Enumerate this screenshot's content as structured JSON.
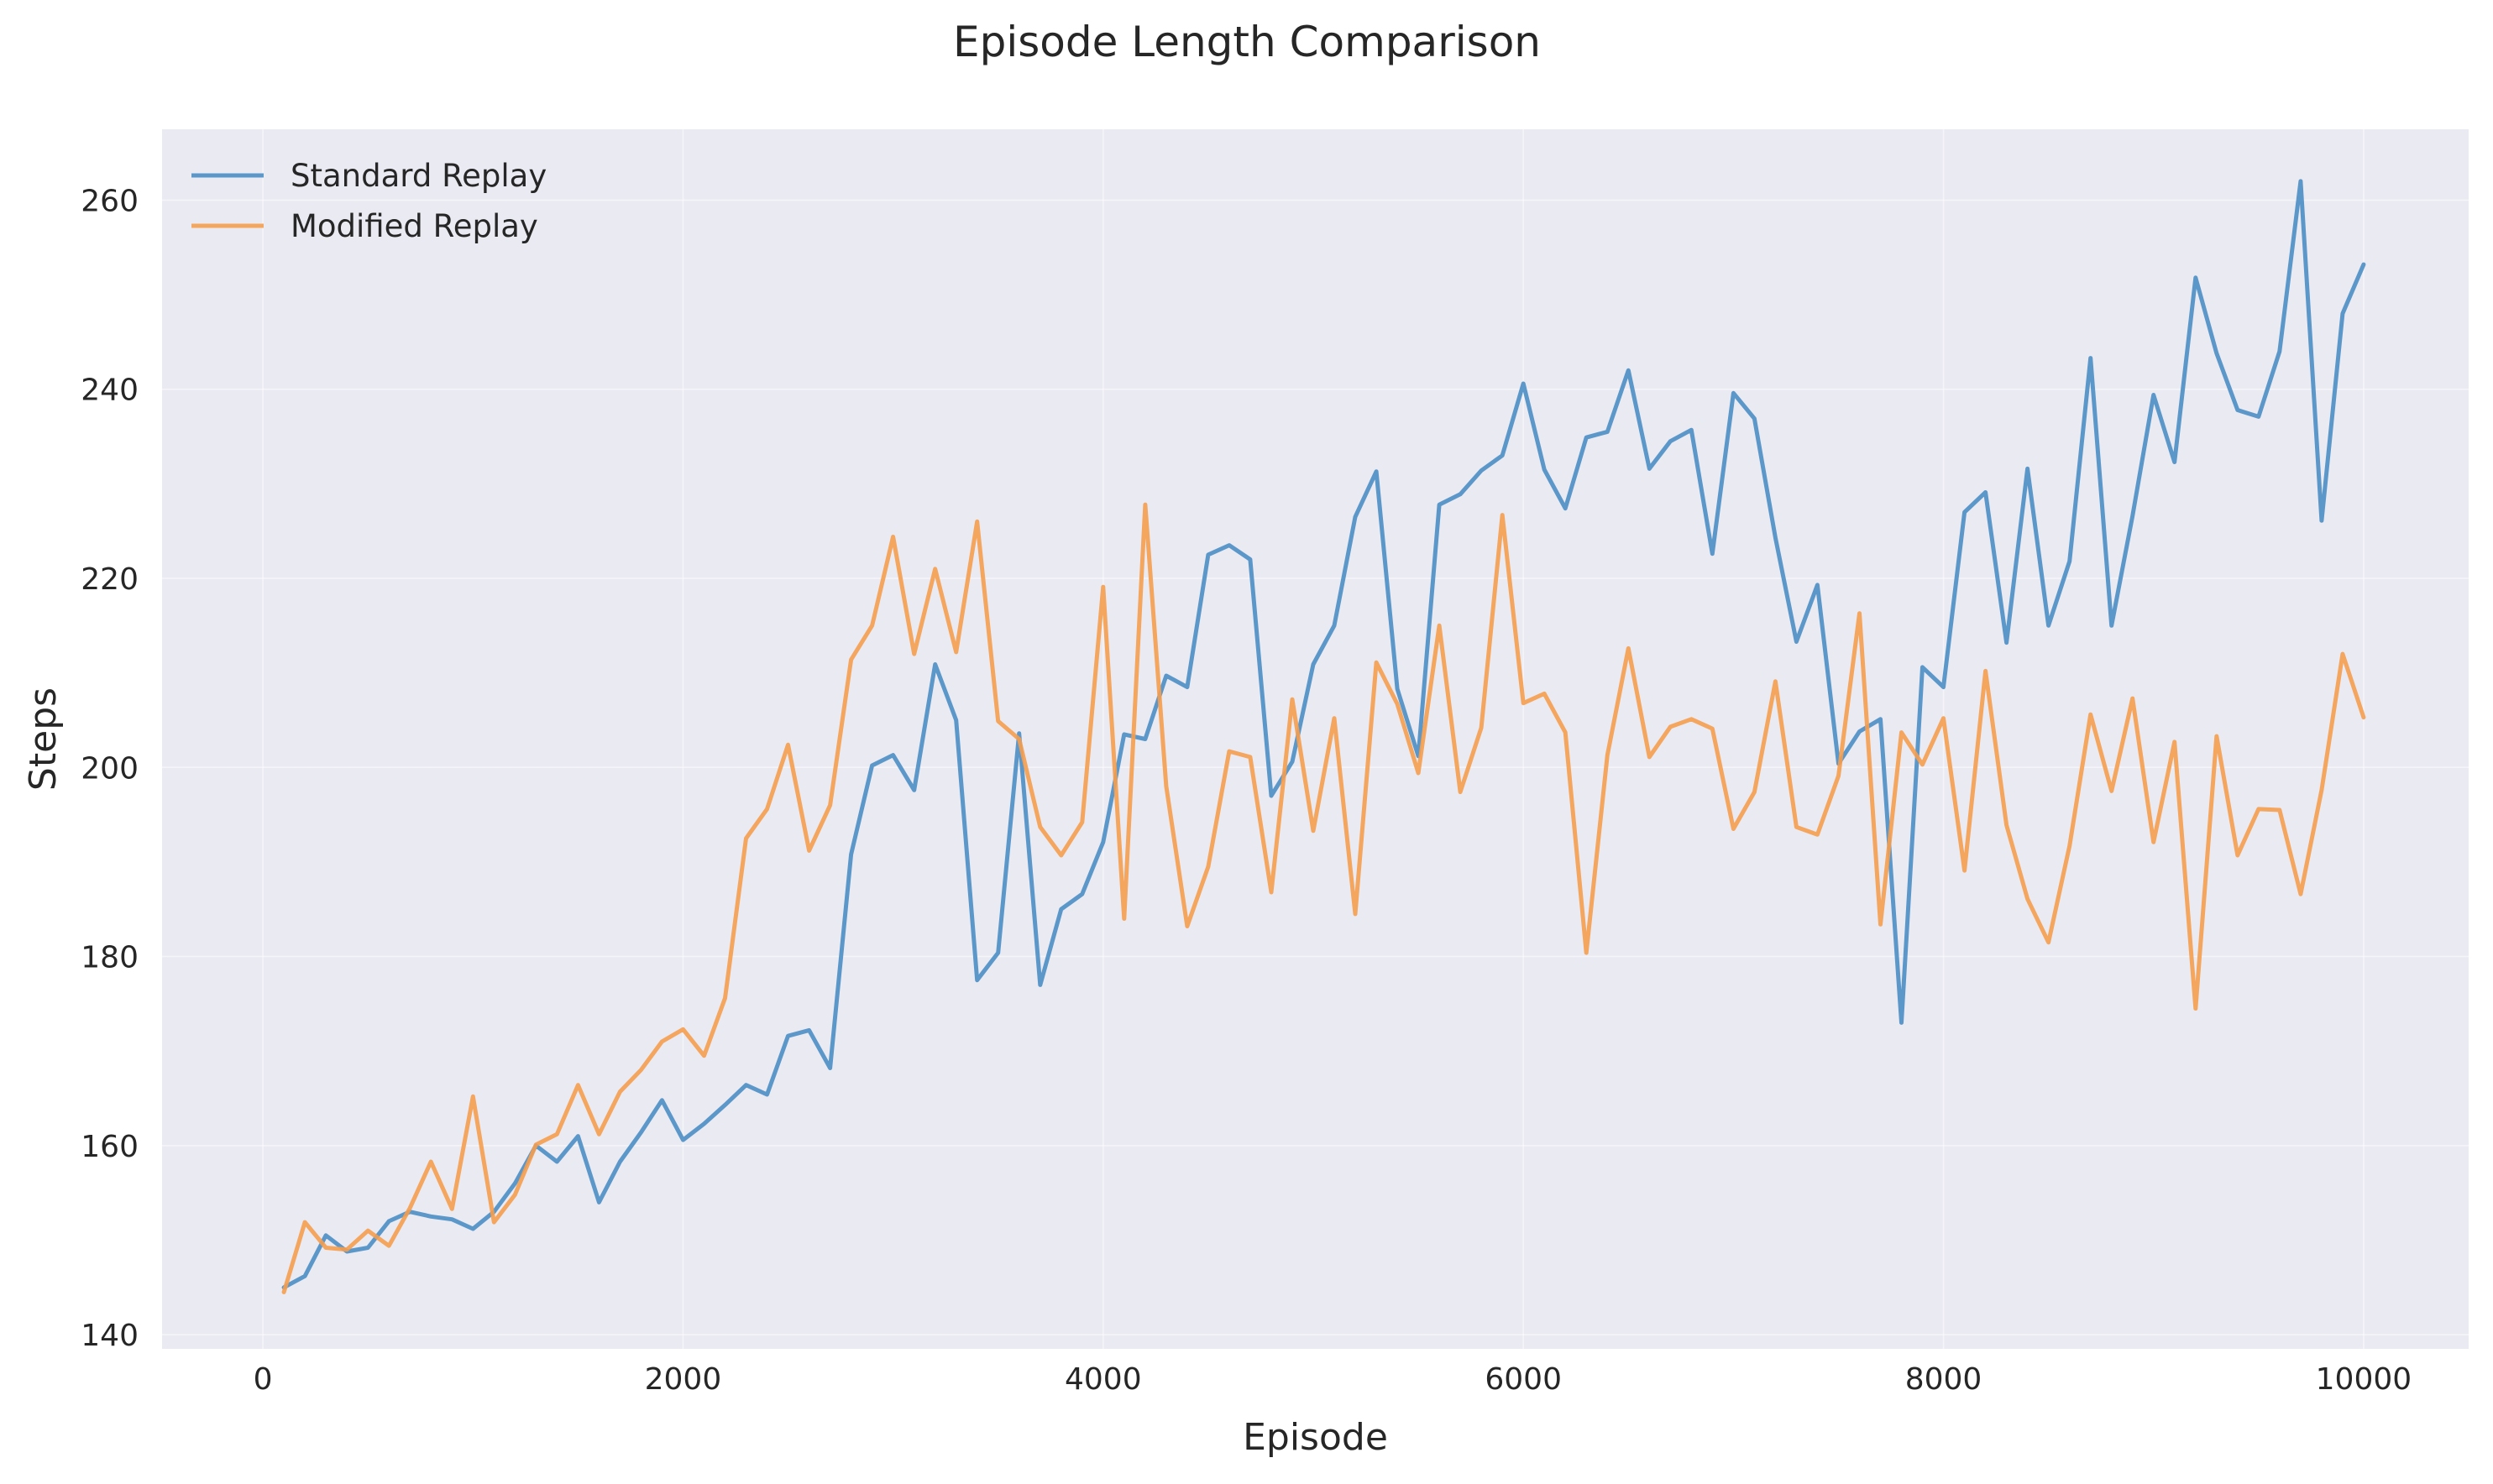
{
  "chart_data": {
    "type": "line",
    "title": "Episode Length Comparison",
    "xlabel": "Episode",
    "ylabel": "Steps",
    "xlim": [
      -480,
      10500
    ],
    "ylim": [
      138.5,
      267.5
    ],
    "xticks": [
      0,
      2000,
      4000,
      6000,
      8000,
      10000
    ],
    "xtick_labels": [
      "0",
      "2000",
      "4000",
      "6000",
      "8000",
      "10000"
    ],
    "yticks": [
      140,
      160,
      180,
      200,
      220,
      240,
      260
    ],
    "ytick_labels": [
      "140",
      "160",
      "180",
      "200",
      "220",
      "240",
      "260"
    ],
    "grid": true,
    "legend_position": "top-left",
    "x": [
      100,
      200,
      300,
      400,
      500,
      600,
      700,
      800,
      900,
      1000,
      1100,
      1200,
      1300,
      1400,
      1500,
      1600,
      1700,
      1800,
      1900,
      2000,
      2100,
      2200,
      2300,
      2400,
      2500,
      2600,
      2700,
      2800,
      2900,
      3000,
      3100,
      3200,
      3300,
      3400,
      3500,
      3600,
      3700,
      3800,
      3900,
      4000,
      4100,
      4200,
      4300,
      4400,
      4500,
      4600,
      4700,
      4800,
      4900,
      5000,
      5100,
      5200,
      5300,
      5400,
      5500,
      5600,
      5700,
      5800,
      5900,
      6000,
      6100,
      6200,
      6300,
      6400,
      6500,
      6600,
      6700,
      6800,
      6900,
      7000,
      7100,
      7200,
      7300,
      7400,
      7500,
      7600,
      7700,
      7800,
      7900,
      8000,
      8100,
      8200,
      8300,
      8400,
      8500,
      8600,
      8700,
      8800,
      8900,
      9000,
      9100,
      9200,
      9300,
      9400,
      9500,
      9600,
      9700,
      9800,
      9900,
      10000
    ],
    "series": [
      {
        "name": "Standard Replay",
        "color": "#4c8ec4",
        "values": [
          145,
          146.2,
          150.5,
          148.8,
          149.2,
          152,
          153,
          152.5,
          152.2,
          151.2,
          153,
          156,
          160,
          158.3,
          161,
          154,
          158.3,
          161.4,
          164.8,
          160.6,
          162.3,
          164.3,
          166.4,
          165.4,
          171.6,
          172.2,
          168.2,
          190.8,
          200.2,
          201.3,
          197.6,
          210.9,
          205,
          177.5,
          180.4,
          203.6,
          177,
          185,
          186.6,
          192.1,
          203.5,
          203,
          209.7,
          208.5,
          222.5,
          223.5,
          222,
          197,
          200.6,
          210.9,
          215,
          226.5,
          231.3,
          208.3,
          201.2,
          227.8,
          228.9,
          231.4,
          233,
          240.6,
          231.5,
          227.4,
          234.9,
          235.5,
          242,
          231.6,
          234.5,
          235.7,
          222.6,
          239.6,
          236.9,
          224.3,
          213.3,
          219.3,
          200.4,
          203.8,
          205.1,
          173,
          210.6,
          208.5,
          227,
          229.1,
          213.2,
          231.6,
          215,
          221.8,
          243.3,
          215,
          226.6,
          239.4,
          232.3,
          251.8,
          243.8,
          237.8,
          237.1,
          244,
          262,
          226.1,
          248,
          253.2
        ]
      },
      {
        "name": "Modified Replay",
        "color": "#f59d4e",
        "values": [
          144.5,
          151.9,
          149.2,
          149,
          151,
          149.4,
          153.4,
          158.3,
          153.3,
          165.2,
          151.9,
          154.8,
          160.1,
          161.2,
          166.4,
          161.2,
          165.7,
          168,
          171,
          172.3,
          169.5,
          175.6,
          192.5,
          195.6,
          202.4,
          191.2,
          196,
          211.4,
          215,
          224.4,
          212,
          221,
          212.2,
          226,
          204.9,
          203,
          193.7,
          190.7,
          194.2,
          219.1,
          184,
          227.8,
          198,
          183.2,
          189.5,
          201.7,
          201.1,
          186.8,
          207.2,
          193.3,
          205.2,
          184.5,
          211.1,
          206.7,
          199.4,
          215,
          197.4,
          204.2,
          226.7,
          206.8,
          207.8,
          203.7,
          180.4,
          201.3,
          212.6,
          201.1,
          204.3,
          205.1,
          204.1,
          193.5,
          197.4,
          209.1,
          193.7,
          192.9,
          199.1,
          216.3,
          183.4,
          203.7,
          200.3,
          205.2,
          189.1,
          210.2,
          193.9,
          186.1,
          181.5,
          191.7,
          205.6,
          197.5,
          207.3,
          192.1,
          202.7,
          174.5,
          203.3,
          190.7,
          195.6,
          195.5,
          186.6,
          197.6,
          212,
          205.3
        ]
      }
    ]
  }
}
